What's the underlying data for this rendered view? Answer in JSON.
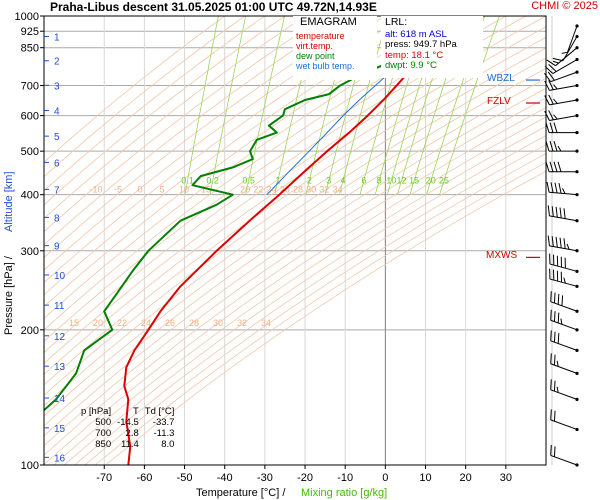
{
  "header": {
    "title": "Praha-Libus   descent   31.05.2025 01:00 UTC   49.72N,14.93E",
    "copyright": "CHMI © 2025"
  },
  "legend": {
    "title": "EMAGRAM",
    "items": [
      {
        "label": "temperature",
        "color": "#dd0000"
      },
      {
        "label": "virt.temp.",
        "color": "#dd0000"
      },
      {
        "label": "dew point",
        "color": "#008000"
      },
      {
        "label": "wet bulb temp.",
        "color": "#1f6fd6"
      }
    ]
  },
  "lrl": {
    "title": "LRL:",
    "lines": [
      {
        "text": "alt: 618 m ASL",
        "color": "#0000cc"
      },
      {
        "text": "press: 949.7 hPa",
        "color": "#000000"
      },
      {
        "text": "temp: 18.1 °C",
        "color": "#dd0000"
      },
      {
        "text": "dwpt: 9.9 °C",
        "color": "#008000"
      }
    ]
  },
  "level_table": {
    "headers": [
      "p [hPa]",
      "T",
      "Td [°C]"
    ],
    "rows": [
      [
        "500",
        "-14.5",
        "-33.7"
      ],
      [
        "700",
        "2.8",
        "-11.3"
      ],
      [
        "850",
        "11.4",
        "8.0"
      ]
    ]
  },
  "levels": [
    {
      "label": "MXWS",
      "color": "#d00000",
      "pressure": 290
    },
    {
      "label": "FZLV",
      "color": "#d00000",
      "pressure": 640
    },
    {
      "label": "WBZL",
      "color": "#1f6fd6",
      "pressure": 720
    }
  ],
  "chart_data": {
    "type": "line",
    "xlabel": "Temperature [°C]  /",
    "xlabel2": "Mixing ratio [g/kg]",
    "ylabel": "Pressure [hPa]  /",
    "ylabel2": "Altitude [km]",
    "xlim": [
      -85,
      40
    ],
    "ylim": [
      1000,
      100
    ],
    "y_scale": "log",
    "x_ticks": [
      -70,
      -60,
      -50,
      -40,
      -30,
      -20,
      -10,
      0,
      10,
      20,
      30
    ],
    "pressure_ticks": [
      100,
      200,
      300,
      400,
      500,
      600,
      700,
      850,
      925,
      1000
    ],
    "altitude_ticks": [
      {
        "km": 1,
        "p": 900
      },
      {
        "km": 2,
        "p": 795
      },
      {
        "km": 3,
        "p": 701
      },
      {
        "km": 4,
        "p": 616
      },
      {
        "km": 5,
        "p": 540
      },
      {
        "km": 6,
        "p": 472
      },
      {
        "km": 7,
        "p": 411
      },
      {
        "km": 8,
        "p": 356
      },
      {
        "km": 9,
        "p": 308
      },
      {
        "km": 10,
        "p": 265
      },
      {
        "km": 11,
        "p": 227
      },
      {
        "km": 12,
        "p": 194
      },
      {
        "km": 13,
        "p": 166
      },
      {
        "km": 14,
        "p": 141
      },
      {
        "km": 15,
        "p": 121
      },
      {
        "km": 16,
        "p": 104
      }
    ],
    "dry_adiabat_labels": {
      "p": 400,
      "values": [
        "-10",
        "-5",
        "0",
        "5",
        "10",
        "15",
        "20",
        "22",
        "24",
        "26",
        "28",
        "30",
        "32",
        "34"
      ]
    },
    "dry_adiabat_labels_top": {
      "p": 200,
      "values": [
        "15",
        "20",
        "22",
        "24",
        "26",
        "28",
        "30",
        "32",
        "34"
      ]
    },
    "mixing_ratio_labels": {
      "p": 430,
      "values": [
        "0.1",
        "0.2",
        "0.5",
        "1",
        "2",
        "3",
        "4",
        "6",
        "8",
        "10",
        "12",
        "15",
        "20",
        "25"
      ]
    },
    "series": [
      {
        "name": "temperature",
        "color": "#dd0000",
        "points": [
          [
            949.7,
            18.1
          ],
          [
            925,
            16.0
          ],
          [
            900,
            13.6
          ],
          [
            850,
            11.4
          ],
          [
            800,
            8.3
          ],
          [
            750,
            5.8
          ],
          [
            700,
            2.8
          ],
          [
            650,
            -0.5
          ],
          [
            600,
            -4.4
          ],
          [
            550,
            -9.0
          ],
          [
            500,
            -14.5
          ],
          [
            450,
            -20.2
          ],
          [
            400,
            -26.4
          ],
          [
            350,
            -33.8
          ],
          [
            300,
            -42.0
          ],
          [
            250,
            -51.0
          ],
          [
            220,
            -56.0
          ],
          [
            200,
            -59.0
          ],
          [
            180,
            -62.5
          ],
          [
            165,
            -64.5
          ],
          [
            150,
            -65.0
          ],
          [
            140,
            -64.0
          ],
          [
            125,
            -64.5
          ],
          [
            110,
            -63.5
          ],
          [
            100,
            -64.0
          ]
        ]
      },
      {
        "name": "dew point",
        "color": "#008000",
        "points": [
          [
            949.7,
            9.9
          ],
          [
            925,
            9.5
          ],
          [
            900,
            9.0
          ],
          [
            850,
            8.0
          ],
          [
            800,
            3.0
          ],
          [
            750,
            -5.0
          ],
          [
            700,
            -11.3
          ],
          [
            670,
            -14.0
          ],
          [
            650,
            -20.0
          ],
          [
            620,
            -25.0
          ],
          [
            600,
            -25.5
          ],
          [
            570,
            -29.0
          ],
          [
            550,
            -27.0
          ],
          [
            530,
            -32.0
          ],
          [
            500,
            -33.7
          ],
          [
            480,
            -33.0
          ],
          [
            460,
            -38.0
          ],
          [
            440,
            -46.0
          ],
          [
            420,
            -48.0
          ],
          [
            400,
            -38.0
          ],
          [
            380,
            -42.0
          ],
          [
            350,
            -51.0
          ],
          [
            300,
            -59.0
          ],
          [
            270,
            -63.0
          ],
          [
            240,
            -67.0
          ],
          [
            220,
            -70.0
          ],
          [
            200,
            -68.0
          ],
          [
            180,
            -75.0
          ],
          [
            160,
            -77.0
          ],
          [
            140,
            -82.0
          ],
          [
            130,
            -86.0
          ]
        ]
      },
      {
        "name": "wet bulb temp.",
        "color": "#1f6fd6",
        "points": [
          [
            949.7,
            13.0
          ],
          [
            925,
            12.0
          ],
          [
            900,
            10.8
          ],
          [
            850,
            9.5
          ],
          [
            800,
            5.5
          ],
          [
            750,
            1.2
          ],
          [
            700,
            -2.5
          ],
          [
            650,
            -6.5
          ],
          [
            600,
            -10.5
          ],
          [
            550,
            -14.5
          ],
          [
            500,
            -19.0
          ],
          [
            450,
            -24.0
          ],
          [
            400,
            -29.5
          ]
        ]
      }
    ],
    "wind_barbs": [
      {
        "p": 950,
        "dir": 200,
        "kt": 5
      },
      {
        "p": 900,
        "dir": 210,
        "kt": 10
      },
      {
        "p": 850,
        "dir": 230,
        "kt": 15
      },
      {
        "p": 800,
        "dir": 240,
        "kt": 20
      },
      {
        "p": 750,
        "dir": 250,
        "kt": 20
      },
      {
        "p": 700,
        "dir": 260,
        "kt": 25
      },
      {
        "p": 650,
        "dir": 260,
        "kt": 25
      },
      {
        "p": 600,
        "dir": 260,
        "kt": 25
      },
      {
        "p": 550,
        "dir": 270,
        "kt": 30
      },
      {
        "p": 500,
        "dir": 270,
        "kt": 35
      },
      {
        "p": 450,
        "dir": 270,
        "kt": 40
      },
      {
        "p": 400,
        "dir": 275,
        "kt": 45
      },
      {
        "p": 350,
        "dir": 280,
        "kt": 50
      },
      {
        "p": 300,
        "dir": 280,
        "kt": 55
      },
      {
        "p": 270,
        "dir": 285,
        "kt": 50
      },
      {
        "p": 250,
        "dir": 285,
        "kt": 45
      },
      {
        "p": 220,
        "dir": 290,
        "kt": 40
      },
      {
        "p": 200,
        "dir": 290,
        "kt": 35
      },
      {
        "p": 180,
        "dir": 290,
        "kt": 30
      },
      {
        "p": 160,
        "dir": 290,
        "kt": 25
      },
      {
        "p": 140,
        "dir": 290,
        "kt": 25
      },
      {
        "p": 120,
        "dir": 290,
        "kt": 20
      },
      {
        "p": 100,
        "dir": 290,
        "kt": 20
      }
    ]
  }
}
